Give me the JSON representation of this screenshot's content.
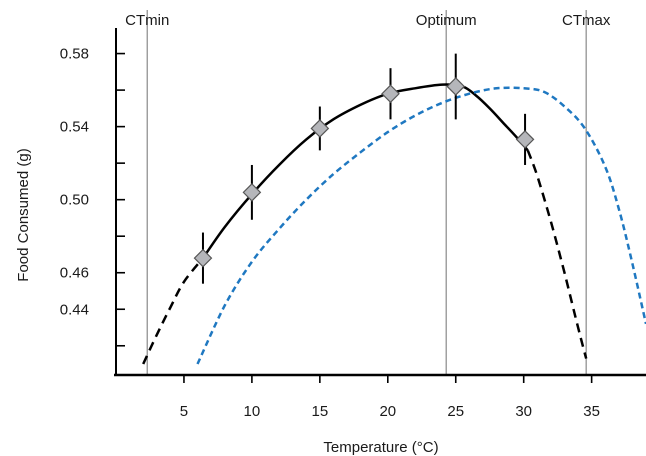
{
  "chart_data": {
    "type": "line",
    "xlabel": "Temperature (°C)",
    "ylabel": "Food Consumed (g)",
    "xlim": [
      0,
      39
    ],
    "ylim": [
      0.404,
      0.594
    ],
    "x_ticks": [
      5,
      10,
      15,
      20,
      25,
      30,
      35
    ],
    "y_ticks": [
      0.44,
      0.46,
      0.5,
      0.54,
      0.58
    ],
    "y_tick_labels": [
      "0.44",
      "0.46",
      "0.50",
      "0.54",
      "0.58"
    ],
    "x_tick_labels": [
      "5",
      "10",
      "15",
      "20",
      "25",
      "30",
      "35"
    ],
    "y_minor_ticks": [
      0.42,
      0.44,
      0.46,
      0.48,
      0.5,
      0.52,
      0.54,
      0.56,
      0.58
    ],
    "grid": false,
    "reference_lines": [
      {
        "label": "CTmin",
        "x": 2.3
      },
      {
        "label": "Optimum",
        "x": 24.3
      },
      {
        "label": "CTmax",
        "x": 34.6
      }
    ],
    "points": [
      {
        "x": 6.4,
        "y": 0.468,
        "err": 0.014
      },
      {
        "x": 10.0,
        "y": 0.504,
        "err": 0.015
      },
      {
        "x": 15.0,
        "y": 0.539,
        "err": 0.012
      },
      {
        "x": 20.2,
        "y": 0.558,
        "err": 0.014
      },
      {
        "x": 25.0,
        "y": 0.562,
        "err": 0.018
      },
      {
        "x": 30.1,
        "y": 0.533,
        "err": 0.014
      }
    ],
    "curves": [
      {
        "style": "solid",
        "color": "#000000",
        "x": [
          6.4,
          8,
          10,
          12,
          14,
          16,
          18,
          20,
          22,
          24,
          25.5,
          26.5,
          27.5,
          28.5,
          29.5,
          30.3
        ],
        "y": [
          0.468,
          0.485,
          0.503,
          0.519,
          0.533,
          0.544,
          0.552,
          0.558,
          0.561,
          0.563,
          0.562,
          0.557,
          0.55,
          0.542,
          0.534,
          0.527
        ]
      },
      {
        "style": "dashed",
        "color": "#000000",
        "x": [
          2.0,
          3.0,
          4.0,
          5.0,
          6.4
        ],
        "y": [
          0.41,
          0.426,
          0.441,
          0.455,
          0.468
        ]
      },
      {
        "style": "dashed",
        "color": "#000000",
        "x": [
          30.3,
          31.0,
          32.0,
          33.0,
          34.0,
          34.6
        ],
        "y": [
          0.527,
          0.513,
          0.488,
          0.46,
          0.43,
          0.413
        ]
      },
      {
        "style": "dashed",
        "color": "#1f78c1",
        "x": [
          6.0,
          8.0,
          10.0,
          12.0,
          14.0,
          16.0,
          18.0,
          20.0,
          22.0,
          24.0,
          26.0,
          28.0,
          30.0,
          31.5,
          33.0,
          34.5,
          36.0,
          37.0,
          38.0,
          39.0
        ],
        "y": [
          0.41,
          0.442,
          0.466,
          0.484,
          0.5,
          0.514,
          0.526,
          0.537,
          0.546,
          0.553,
          0.558,
          0.561,
          0.561,
          0.559,
          0.551,
          0.539,
          0.518,
          0.495,
          0.465,
          0.432
        ]
      }
    ]
  }
}
